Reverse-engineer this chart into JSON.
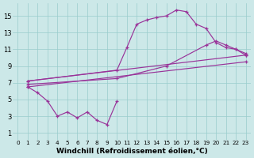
{
  "background_color": "#cce8e8",
  "grid_color": "#99cccc",
  "line_color": "#993399",
  "xlabel": "Windchill (Refroidissement éolien,°C)",
  "xlabel_fontsize": 6.5,
  "ylim": [
    0.2,
    16.5
  ],
  "xlim": [
    -0.5,
    23.5
  ],
  "yticks": [
    1,
    3,
    5,
    7,
    9,
    11,
    13,
    15
  ],
  "xtick_labels": [
    "0",
    "1",
    "2",
    "3",
    "4",
    "5",
    "6",
    "7",
    "8",
    "9",
    "10",
    "11",
    "12",
    "13",
    "14",
    "15",
    "16",
    "17",
    "18",
    "19",
    "20",
    "21",
    "22",
    "23"
  ],
  "series": [
    {
      "x": [
        1,
        2,
        3,
        4,
        5,
        6,
        7,
        8,
        9,
        10
      ],
      "y": [
        6.5,
        5.8,
        4.8,
        3.0,
        3.5,
        2.8,
        3.5,
        2.5,
        2.0,
        4.8
      ]
    },
    {
      "x": [
        1,
        10,
        11,
        12,
        13,
        14,
        15,
        16,
        17,
        18,
        19,
        20,
        21,
        22,
        23
      ],
      "y": [
        7.2,
        8.5,
        11.2,
        14.0,
        14.5,
        14.8,
        15.0,
        15.7,
        15.5,
        14.0,
        13.5,
        11.8,
        11.2,
        11.0,
        10.3
      ]
    },
    {
      "x": [
        1,
        23
      ],
      "y": [
        7.2,
        10.3
      ]
    },
    {
      "x": [
        1,
        10,
        15,
        19,
        20,
        21,
        22,
        23
      ],
      "y": [
        6.8,
        7.5,
        9.0,
        11.5,
        12.0,
        11.5,
        11.0,
        10.5
      ]
    },
    {
      "x": [
        1,
        23
      ],
      "y": [
        6.5,
        9.5
      ]
    }
  ]
}
